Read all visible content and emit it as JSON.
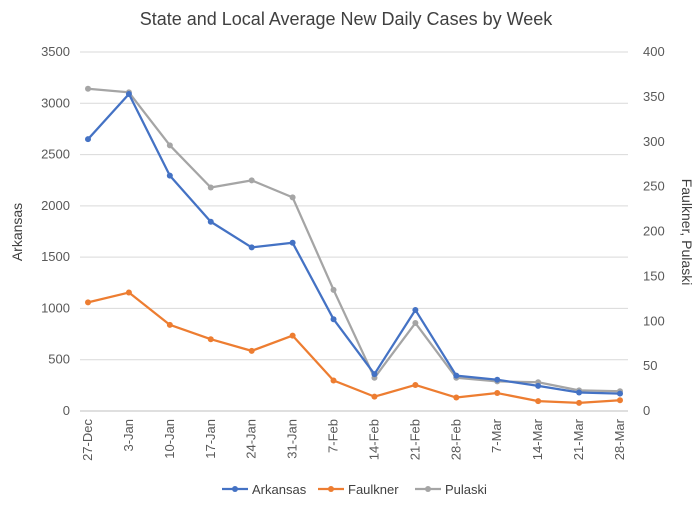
{
  "chart_data": {
    "type": "line",
    "title": "State and Local Average New Daily Cases by Week",
    "categories": [
      "27-Dec",
      "3-Jan",
      "10-Jan",
      "17-Jan",
      "24-Jan",
      "31-Jan",
      "7-Feb",
      "14-Feb",
      "21-Feb",
      "28-Feb",
      "7-Mar",
      "14-Mar",
      "21-Mar",
      "28-Mar"
    ],
    "primary_axis": {
      "label": "Arkansas",
      "range": [
        0,
        3500
      ],
      "ticks": [
        "0",
        "500",
        "1000",
        "1500",
        "2000",
        "2500",
        "3000",
        "3500"
      ]
    },
    "secondary_axis": {
      "label": "Faulkner, Pulaski",
      "range": [
        0,
        400
      ],
      "ticks": [
        "0",
        "50",
        "100",
        "150",
        "200",
        "250",
        "300",
        "350",
        "400"
      ]
    },
    "series": [
      {
        "name": "Arkansas",
        "axis": "primary",
        "color": "#4472C4",
        "values": [
          2650,
          3090,
          2295,
          1845,
          1595,
          1640,
          895,
          360,
          985,
          345,
          305,
          245,
          180,
          170
        ]
      },
      {
        "name": "Faulkner",
        "axis": "secondary",
        "color": "#ED7D31",
        "values": [
          121,
          132,
          96,
          80,
          67,
          84,
          34,
          16,
          29,
          15,
          20,
          11,
          9,
          12
        ]
      },
      {
        "name": "Pulaski",
        "axis": "secondary",
        "color": "#A5A5A5",
        "values": [
          359,
          355,
          296,
          249,
          257,
          238,
          135,
          37,
          98,
          37,
          33,
          32,
          23,
          22
        ]
      }
    ],
    "grid": true,
    "legend": "bottom"
  }
}
